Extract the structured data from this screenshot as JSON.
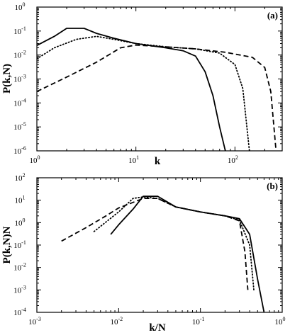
{
  "chart_data": [
    {
      "type": "line",
      "panel_label": "(a)",
      "xlabel": "k",
      "ylabel": "P(k,N)",
      "xscale": "log",
      "yscale": "log",
      "xlim": [
        1,
        300
      ],
      "ylim": [
        1e-06,
        1
      ],
      "x_ticks": [
        {
          "value": 1,
          "base": "10",
          "exp": "0"
        },
        {
          "value": 10,
          "base": "10",
          "exp": "1"
        },
        {
          "value": 100,
          "base": "10",
          "exp": "2"
        }
      ],
      "y_ticks": [
        {
          "value": 1,
          "base": "10",
          "exp": "0"
        },
        {
          "value": 0.1,
          "base": "10",
          "exp": "-1"
        },
        {
          "value": 0.01,
          "base": "10",
          "exp": "-2"
        },
        {
          "value": 0.001,
          "base": "10",
          "exp": "-3"
        },
        {
          "value": 0.0001,
          "base": "10",
          "exp": "-4"
        },
        {
          "value": 1e-05,
          "base": "10",
          "exp": "-5"
        },
        {
          "value": 1e-06,
          "base": "10",
          "exp": "-6"
        }
      ],
      "legend": "none",
      "grid": false,
      "series": [
        {
          "style": "solid",
          "points": [
            [
              1,
              0.025
            ],
            [
              1.5,
              0.06
            ],
            [
              2,
              0.13
            ],
            [
              3,
              0.13
            ],
            [
              4,
              0.08
            ],
            [
              6,
              0.05
            ],
            [
              10,
              0.03
            ],
            [
              20,
              0.02
            ],
            [
              30,
              0.015
            ],
            [
              40,
              0.009
            ],
            [
              50,
              0.002
            ],
            [
              60,
              0.0002
            ],
            [
              70,
              1e-05
            ],
            [
              80,
              1e-06
            ]
          ]
        },
        {
          "style": "dotted",
          "points": [
            [
              1,
              0.007
            ],
            [
              1.5,
              0.02
            ],
            [
              2.5,
              0.045
            ],
            [
              4,
              0.06
            ],
            [
              6,
              0.045
            ],
            [
              10,
              0.03
            ],
            [
              20,
              0.022
            ],
            [
              40,
              0.018
            ],
            [
              70,
              0.012
            ],
            [
              100,
              0.004
            ],
            [
              120,
              0.0004
            ],
            [
              140,
              1e-06
            ]
          ]
        },
        {
          "style": "dashed",
          "points": [
            [
              1,
              0.0003
            ],
            [
              2,
              0.0012
            ],
            [
              4,
              0.005
            ],
            [
              7,
              0.02
            ],
            [
              10,
              0.026
            ],
            [
              20,
              0.022
            ],
            [
              40,
              0.018
            ],
            [
              80,
              0.013
            ],
            [
              150,
              0.008
            ],
            [
              200,
              0.003
            ],
            [
              230,
              0.0003
            ],
            [
              260,
              1e-06
            ]
          ]
        }
      ]
    },
    {
      "type": "line",
      "panel_label": "(b)",
      "xlabel": "k/N",
      "ylabel": "P(k,N)N",
      "xscale": "log",
      "yscale": "log",
      "xlim": [
        0.001,
        1
      ],
      "ylim": [
        0.0001,
        100
      ],
      "x_ticks": [
        {
          "value": 0.001,
          "base": "10",
          "exp": "-3"
        },
        {
          "value": 0.01,
          "base": "10",
          "exp": "-2"
        },
        {
          "value": 0.1,
          "base": "10",
          "exp": "-1"
        },
        {
          "value": 1,
          "base": "10",
          "exp": "0"
        }
      ],
      "y_ticks": [
        {
          "value": 100,
          "base": "10",
          "exp": "2"
        },
        {
          "value": 10,
          "base": "10",
          "exp": "1"
        },
        {
          "value": 1,
          "base": "10",
          "exp": "0"
        },
        {
          "value": 0.1,
          "base": "10",
          "exp": "-1"
        },
        {
          "value": 0.01,
          "base": "10",
          "exp": "-2"
        },
        {
          "value": 0.001,
          "base": "10",
          "exp": "-3"
        },
        {
          "value": 0.0001,
          "base": "10",
          "exp": "-4"
        }
      ],
      "legend": "none",
      "grid": false,
      "series": [
        {
          "style": "solid",
          "points": [
            [
              0.008,
              0.3
            ],
            [
              0.01,
              0.8
            ],
            [
              0.015,
              4
            ],
            [
              0.02,
              15
            ],
            [
              0.03,
              15
            ],
            [
              0.05,
              5
            ],
            [
              0.1,
              3
            ],
            [
              0.2,
              2
            ],
            [
              0.3,
              1.5
            ],
            [
              0.4,
              0.3
            ],
            [
              0.5,
              0.003
            ],
            [
              0.6,
              0.0001
            ]
          ]
        },
        {
          "style": "dotted",
          "points": [
            [
              0.005,
              0.4
            ],
            [
              0.01,
              3
            ],
            [
              0.015,
              12
            ],
            [
              0.02,
              14
            ],
            [
              0.03,
              12
            ],
            [
              0.05,
              5
            ],
            [
              0.1,
              3
            ],
            [
              0.2,
              2
            ],
            [
              0.3,
              1.3
            ],
            [
              0.4,
              0.1
            ],
            [
              0.45,
              0.001
            ]
          ]
        },
        {
          "style": "dashed",
          "points": [
            [
              0.002,
              0.15
            ],
            [
              0.004,
              0.6
            ],
            [
              0.007,
              2
            ],
            [
              0.01,
              4.5
            ],
            [
              0.02,
              12
            ],
            [
              0.03,
              12
            ],
            [
              0.05,
              5
            ],
            [
              0.1,
              3
            ],
            [
              0.2,
              2
            ],
            [
              0.3,
              1.2
            ],
            [
              0.35,
              0.05
            ],
            [
              0.38,
              0.001
            ]
          ]
        }
      ]
    }
  ]
}
